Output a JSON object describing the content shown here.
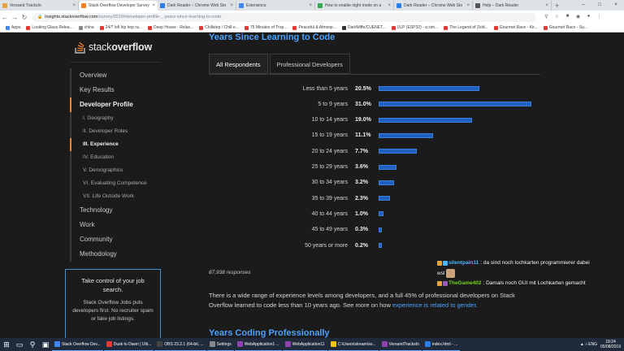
{
  "browser": {
    "tabs": [
      {
        "label": "Versand TracksIn",
        "color": "#e8a33d"
      },
      {
        "label": "Stack Overflow Developer Survey",
        "color": "#f48024"
      },
      {
        "label": "Dark Reader – Chrome Web Sto",
        "color": "#2b7de9"
      },
      {
        "label": "Extensions",
        "color": "#4285f4"
      },
      {
        "label": "How to enable night mode on a",
        "color": "#34a853"
      },
      {
        "label": "Dark Reader – Chrome Web Sto",
        "color": "#2b7de9"
      },
      {
        "label": "Help – Dark Reader",
        "color": "#555555"
      }
    ],
    "url_host": "insights.stackoverflow.com",
    "url_path": "/survey/2019#developer-profile-_-years-since-learning-to-code",
    "bookmarks": [
      {
        "label": "Apps",
        "color": "#4285f4"
      },
      {
        "label": "Looking Glass Relea...",
        "color": "#e53935"
      },
      {
        "label": "china",
        "color": "#888888"
      },
      {
        "label": "24/7 lofi hip hop ra...",
        "color": "#e53935"
      },
      {
        "label": "Deep House - Relax...",
        "color": "#e53935"
      },
      {
        "label": "Chillstep / Chill-o...",
        "color": "#e53935"
      },
      {
        "label": "75 Minutes of Trop...",
        "color": "#e53935"
      },
      {
        "label": "Peaceful & Atmosp...",
        "color": "#e53935"
      },
      {
        "label": "DarkMiffe/CUENET...",
        "color": "#333333"
      },
      {
        "label": "ULP (ESP32) - a sim...",
        "color": "#e53935"
      },
      {
        "label": "The Legend of Zeld...",
        "color": "#e53935"
      },
      {
        "label": "Gourmet Race - Kir...",
        "color": "#e53935"
      },
      {
        "label": "Gourmet Race - Su...",
        "color": "#e53935"
      }
    ]
  },
  "logo": {
    "stack": "stack",
    "overflow": "overflow"
  },
  "sidebar": {
    "items": [
      {
        "label": "Overview",
        "level": "top",
        "active": false
      },
      {
        "label": "Key Results",
        "level": "top",
        "active": false
      },
      {
        "label": "Developer Profile",
        "level": "top",
        "active": true
      },
      {
        "label": "I. Geography",
        "level": "sub",
        "active": false
      },
      {
        "label": "II. Developer Roles",
        "level": "sub",
        "active": false
      },
      {
        "label": "III. Experience",
        "level": "sub",
        "active": true
      },
      {
        "label": "IV. Education",
        "level": "sub",
        "active": false
      },
      {
        "label": "V. Demographics",
        "level": "sub",
        "active": false
      },
      {
        "label": "VI. Evaluating Competence",
        "level": "sub",
        "active": false
      },
      {
        "label": "VII. Life Outside Work",
        "level": "sub",
        "active": false
      },
      {
        "label": "Technology",
        "level": "top",
        "active": false
      },
      {
        "label": "Work",
        "level": "top",
        "active": false
      },
      {
        "label": "Community",
        "level": "top",
        "active": false
      },
      {
        "label": "Methodology",
        "level": "top",
        "active": false
      }
    ]
  },
  "jobs_promo": {
    "title": "Take control of your job search.",
    "body": "Stack Overflow Jobs puts developers first. No recruiter spam or fake job listings."
  },
  "main": {
    "section_title": "Years Since Learning to Code",
    "tabs": [
      {
        "label": "All Respondents",
        "active": true
      },
      {
        "label": "Professional Developers",
        "active": false
      }
    ],
    "responses": "87,938 responses",
    "paragraph_text": "There is a wide range of experience levels among developers, and a full 45% of professional developers on Stack Overflow learned to code less than 10 years ago. See more on how ",
    "paragraph_link": "experience is related to gender",
    "paragraph_end": ".",
    "next_section_title": "Years Coding Professionally"
  },
  "chart_data": {
    "type": "bar",
    "orientation": "horizontal",
    "title": "Years Since Learning to Code",
    "categories": [
      "Less than 5 years",
      "5 to 9 years",
      "10 to 14 years",
      "15 to 19 years",
      "20 to 24 years",
      "25 to 29 years",
      "30 to 34 years",
      "35 to 39 years",
      "40 to 44 years",
      "45 to 49 years",
      "50 years or more"
    ],
    "values": [
      20.5,
      31.0,
      19.0,
      11.1,
      7.7,
      3.6,
      3.2,
      2.3,
      1.0,
      0.3,
      0.2
    ],
    "value_labels": [
      "20.5%",
      "31.0%",
      "19.0%",
      "11.1%",
      "7.7%",
      "3.6%",
      "3.2%",
      "2.3%",
      "1.0%",
      "0.3%",
      "0.2%"
    ],
    "xlim": [
      0,
      31.0
    ],
    "bar_color": "#1e5fbf"
  },
  "chat": [
    {
      "user": "silentpain11",
      "user_color": "blue",
      "text": "da sind noch lochkarten programmierer dabei"
    },
    {
      "user": "",
      "user_color": "",
      "text": "wsl"
    },
    {
      "user": "TheGame402",
      "user_color": "green",
      "text": "Damals noch GUI mit Lochkarten gemacht"
    }
  ],
  "taskbar": {
    "apps": [
      {
        "label": "Stack Overflow Dev...",
        "color": "#4285f4"
      },
      {
        "label": "Dusk to Dawn | Ulti...",
        "color": "#e53935"
      },
      {
        "label": "OBS 23.2.1 (64-bit, ...",
        "color": "#444444"
      },
      {
        "label": "Settings",
        "color": "#888888"
      },
      {
        "label": "WebApplication1 ...",
        "color": "#8e44ad"
      },
      {
        "label": "WebApplication11",
        "color": "#8e44ad"
      },
      {
        "label": "C:\\Users\\stream\\so...",
        "color": "#f1c40f"
      },
      {
        "label": "VersandTracksIn",
        "color": "#8e44ad"
      },
      {
        "label": "index.html - ...",
        "color": "#2b7de9"
      }
    ],
    "lang": "ENG",
    "time": "18:24",
    "date": "05/08/2019"
  }
}
